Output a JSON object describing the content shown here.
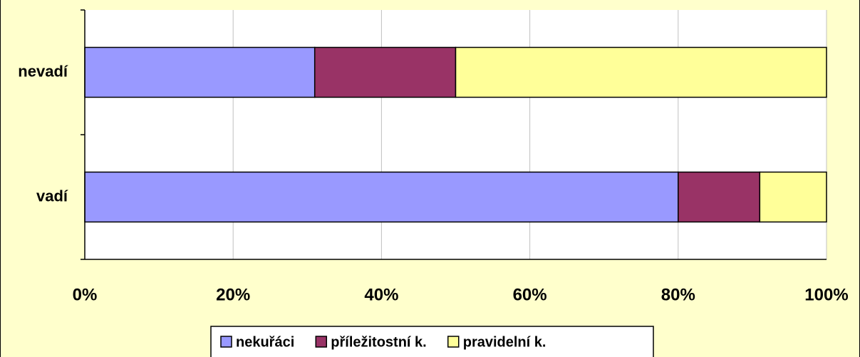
{
  "chart_data": {
    "type": "stacked-barh",
    "categories": [
      "nevadí",
      "vadí"
    ],
    "series": [
      {
        "name": "nekuřáci",
        "color": "#9999ff",
        "values": [
          31,
          80
        ]
      },
      {
        "name": "příležitostní k.",
        "color": "#993366",
        "values": [
          19,
          11
        ]
      },
      {
        "name": "pravidelní k.",
        "color": "#ffff99",
        "values": [
          50,
          9
        ]
      }
    ],
    "xlim": [
      0,
      100
    ],
    "xticks": [
      {
        "value": 0,
        "label": "0%"
      },
      {
        "value": 20,
        "label": "20%"
      },
      {
        "value": 40,
        "label": "40%"
      },
      {
        "value": 60,
        "label": "60%"
      },
      {
        "value": 80,
        "label": "80%"
      },
      {
        "value": 100,
        "label": "100%"
      }
    ],
    "grid": true,
    "legend": "bottom"
  }
}
